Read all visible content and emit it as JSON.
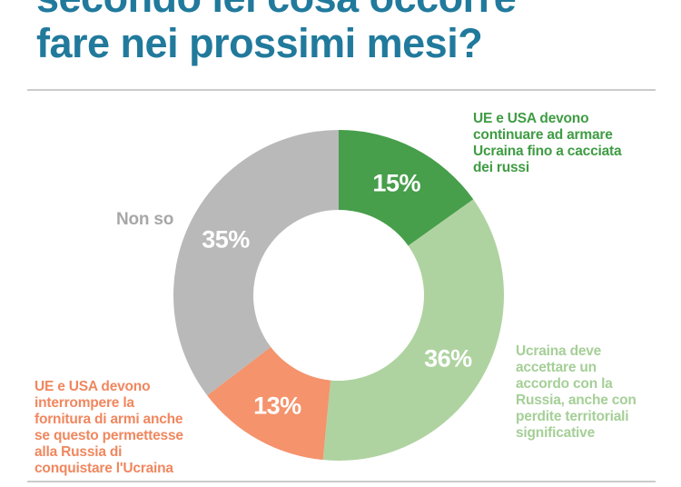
{
  "page": {
    "title_line1": "secondo lei cosa occorre",
    "title_line2": "fare nei prossimi mesi?",
    "title_color": "#217a9c",
    "divider_color": "#cbcbcb",
    "background_color": "#ffffff"
  },
  "chart_data": {
    "type": "pie",
    "subtype": "donut",
    "title": "secondo lei cosa occorre fare nei prossimi mesi?",
    "start_angle": "top",
    "direction": "clockwise",
    "legend_position": "labels-around-chart",
    "percent_label_color": "#ffffff",
    "slices": [
      {
        "label": "UE e USA devono continuare ad armare Ucraina fino a cacciata dei russi",
        "label_lines": [
          "UE e USA devono",
          "continuare ad armare",
          "Ucraina fino a cacciata",
          "dei russi"
        ],
        "value": 15,
        "pct_label": "15%",
        "color": "#479e4b",
        "label_color": "#3f9c43"
      },
      {
        "label": "Ucraina deve accettare un accordo con la Russia, anche con perdite territoriali significative",
        "label_lines": [
          "Ucraina deve",
          "accettare un",
          "accordo con la",
          "Russia, anche con",
          "perdite territoriali",
          "significative"
        ],
        "value": 36,
        "pct_label": "36%",
        "color": "#aed3a0",
        "label_color": "#a5cf97"
      },
      {
        "label": "UE e USA devono interrompere la fornitura di armi anche se questo permettesse alla Russia di conquistare l'Ucraina",
        "label_lines": [
          "UE e USA devono",
          "interrompere la",
          "fornitura di armi anche",
          "se questo permettesse",
          "alla Russia di",
          "conquistare l'Ucraina"
        ],
        "value": 13,
        "pct_label": "13%",
        "color": "#f4936c",
        "label_color": "#f0875f"
      },
      {
        "label": "Non so",
        "label_lines": [
          "Non so"
        ],
        "value": 35,
        "pct_label": "35%",
        "color": "#b9b9b9",
        "label_color": "#a7a7a7"
      }
    ]
  }
}
